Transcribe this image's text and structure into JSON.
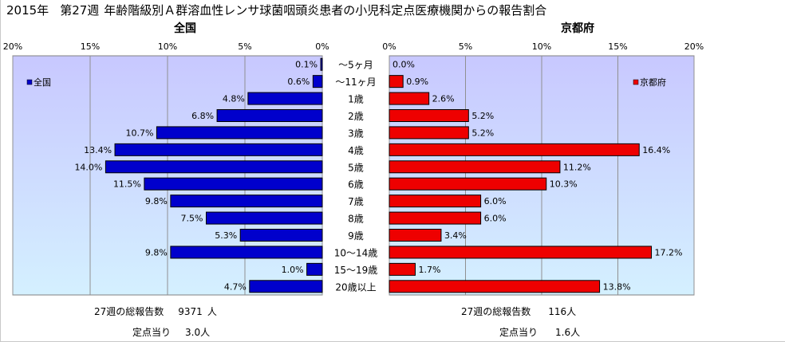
{
  "header": {
    "year": "2015年",
    "week": "第27週",
    "title": "年齢階級別Ａ群溶血性レンサ球菌咽頭炎患者の小児科定点医療機関からの報告割合"
  },
  "chart_data": [
    {
      "type": "bar",
      "orientation": "horizontal",
      "title": "全国",
      "legend": "全国",
      "legend_position": "top-left",
      "direction": "right-to-left",
      "xlim": [
        0,
        20
      ],
      "ticks": [
        "20%",
        "15%",
        "10%",
        "5%",
        "0%"
      ],
      "tick_values": [
        20,
        15,
        10,
        5,
        0
      ],
      "color": "#0000cc",
      "categories": [
        "～5ヶ月",
        "～11ヶ月",
        "1歳",
        "2歳",
        "3歳",
        "4歳",
        "5歳",
        "6歳",
        "7歳",
        "8歳",
        "9歳",
        "10～14歳",
        "15～19歳",
        "20歳以上"
      ],
      "values": [
        0.1,
        0.6,
        4.8,
        6.8,
        10.7,
        13.4,
        14.0,
        11.5,
        9.8,
        7.5,
        5.3,
        9.8,
        1.0,
        4.7
      ],
      "labels": [
        "0.1%",
        "0.6%",
        "4.8%",
        "6.8%",
        "10.7%",
        "13.4%",
        "14.0%",
        "11.5%",
        "9.8%",
        "7.5%",
        "5.3%",
        "9.8%",
        "1.0%",
        "4.7%"
      ],
      "grid": true
    },
    {
      "type": "bar",
      "orientation": "horizontal",
      "title": "京都府",
      "legend": "京都府",
      "legend_position": "top-right",
      "direction": "left-to-right",
      "xlim": [
        0,
        20
      ],
      "ticks": [
        "0%",
        "5%",
        "10%",
        "15%",
        "20%"
      ],
      "tick_values": [
        0,
        5,
        10,
        15,
        20
      ],
      "color": "#ee0000",
      "categories": [
        "～5ヶ月",
        "～11ヶ月",
        "1歳",
        "2歳",
        "3歳",
        "4歳",
        "5歳",
        "6歳",
        "7歳",
        "8歳",
        "9歳",
        "10～14歳",
        "15～19歳",
        "20歳以上"
      ],
      "values": [
        0.0,
        0.9,
        2.6,
        5.2,
        5.2,
        16.4,
        11.2,
        10.3,
        6.0,
        6.0,
        3.4,
        17.2,
        1.7,
        13.8
      ],
      "labels": [
        "0.0%",
        "0.9%",
        "2.6%",
        "5.2%",
        "5.2%",
        "16.4%",
        "11.2%",
        "10.3%",
        "6.0%",
        "6.0%",
        "3.4%",
        "17.2%",
        "1.7%",
        "13.8%"
      ],
      "grid": true
    }
  ],
  "footer": {
    "national": {
      "total_label": "27週の総報告数",
      "total_value": "9371",
      "total_unit": "人",
      "per_label": "定点当り",
      "per_value": "3.0人"
    },
    "kyoto": {
      "total_label": "27週の総報告数",
      "total_value": "116人",
      "per_label": "定点当り",
      "per_value": "1.6人"
    }
  },
  "colors": {
    "plot_top": "#c8c8ff",
    "plot_bottom": "#d4f0ff",
    "national_bar": "#0000cc",
    "kyoto_bar": "#ee0000"
  }
}
